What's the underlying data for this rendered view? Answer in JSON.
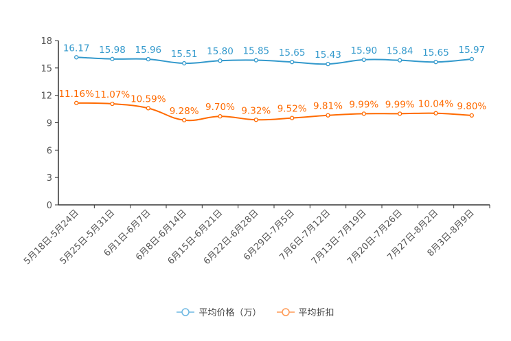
{
  "chart_data": {
    "type": "line",
    "title": "",
    "xlabel": "",
    "ylabel": "",
    "ylim": [
      0,
      18
    ],
    "yticks": [
      0,
      3,
      6,
      9,
      12,
      15,
      18
    ],
    "grid": false,
    "legend_position": "bottom",
    "categories": [
      "5月18日-5月24日",
      "5月25日-5月31日",
      "6月1日-6月7日",
      "6月8日-6月14日",
      "6月15日-6月21日",
      "6月22日-6月28日",
      "6月29日-7月5日",
      "7月6日-7月12日",
      "7月13日-7月19日",
      "7月20日-7月26日",
      "7月27日-8月2日",
      "8月3日-8月9日"
    ],
    "series": [
      {
        "name": "平均价格（万）",
        "color": "#3399cc",
        "legend_color": "#6fb8e2",
        "label_suffix": "",
        "values": [
          16.17,
          15.98,
          15.96,
          15.51,
          15.8,
          15.85,
          15.65,
          15.43,
          15.9,
          15.84,
          15.65,
          15.97
        ]
      },
      {
        "name": "平均折扣",
        "color": "#ff6a00",
        "legend_color": "#ff9a55",
        "label_suffix": "%",
        "values": [
          11.16,
          11.07,
          10.59,
          9.28,
          9.7,
          9.32,
          9.52,
          9.81,
          9.99,
          9.99,
          10.04,
          9.8
        ]
      }
    ]
  }
}
